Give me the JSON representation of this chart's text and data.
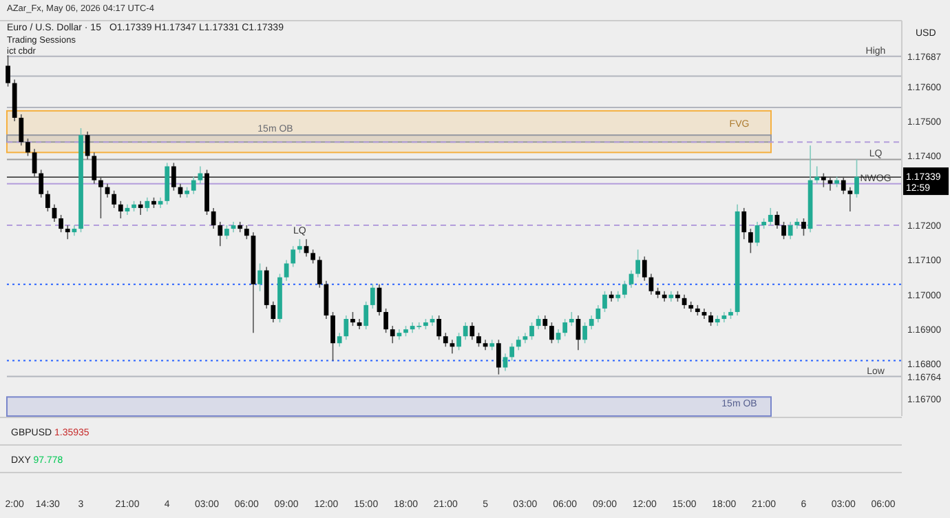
{
  "chart_data": {
    "type": "candlestick",
    "title": "Euro / U.S. Dollar · 15",
    "subtitle": "O1.17339  H1.17347  L1.17331  C1.17339",
    "annotations": [
      "AZar_Fx, May 06, 2026 04:17 UTC-4",
      "Trading Sessions",
      "ict cbdr",
      "USD",
      "GBPUSD 1.35935",
      "DXY 97.778",
      "12:59",
      "LQ"
    ],
    "categories": [
      null,
      "2:00",
      null,
      null,
      null,
      null,
      "14:30",
      null,
      null,
      null,
      null,
      "3",
      null,
      null,
      null,
      null,
      null,
      null,
      "21:00",
      null,
      null,
      null,
      null,
      null,
      "4",
      null,
      null,
      null,
      null,
      null,
      "03:00",
      null,
      null,
      null,
      null,
      null,
      "06:00",
      null,
      null,
      null,
      null,
      null,
      "09:00",
      null,
      null,
      null,
      null,
      null,
      "12:00",
      null,
      null,
      null,
      null,
      null,
      "15:00",
      null,
      null,
      null,
      null,
      null,
      "18:00",
      null,
      null,
      null,
      null,
      null,
      "21:00",
      null,
      null,
      null,
      null,
      null,
      "5",
      null,
      null,
      null,
      null,
      null,
      "03:00",
      null,
      null,
      null,
      null,
      null,
      "06:00",
      null,
      null,
      null,
      null,
      null,
      "09:00",
      null,
      null,
      null,
      null,
      null,
      "12:00",
      null,
      null,
      null,
      null,
      null,
      "15:00",
      null,
      null,
      null,
      null,
      null,
      "18:00",
      null,
      null,
      null,
      null,
      null,
      "21:00",
      null,
      null,
      null,
      null,
      null,
      "6",
      null,
      null,
      null,
      null,
      null,
      "03:00",
      null,
      null,
      null,
      null,
      null,
      "06:00",
      null,
      null
    ],
    "ohlc": [
      [
        1.1766,
        1.1769,
        1.176,
        1.1761
      ],
      [
        1.1761,
        1.1762,
        1.175,
        1.1751
      ],
      [
        1.1751,
        1.1752,
        1.1743,
        1.1744
      ],
      [
        1.1744,
        1.1745,
        1.174,
        1.1741
      ],
      [
        1.1741,
        1.1742,
        1.1734,
        1.1735
      ],
      [
        1.1735,
        1.1736,
        1.1728,
        1.1729
      ],
      [
        1.1729,
        1.173,
        1.1724,
        1.1725
      ],
      [
        1.1725,
        1.1726,
        1.1721,
        1.1722
      ],
      [
        1.1722,
        1.1723,
        1.1718,
        1.1719
      ],
      [
        1.1719,
        1.172,
        1.1716,
        1.1718
      ],
      [
        1.1718,
        1.172,
        1.1717,
        1.1719
      ],
      [
        1.1719,
        1.1748,
        1.1718,
        1.1746
      ],
      [
        1.1746,
        1.1747,
        1.1739,
        1.174
      ],
      [
        1.174,
        1.1741,
        1.1732,
        1.1733
      ],
      [
        1.1733,
        1.1734,
        1.1722,
        1.1731
      ],
      [
        1.1731,
        1.1732,
        1.1728,
        1.1729
      ],
      [
        1.1729,
        1.173,
        1.1725,
        1.1726
      ],
      [
        1.1726,
        1.1727,
        1.1722,
        1.1724
      ],
      [
        1.1724,
        1.1726,
        1.1723,
        1.1725
      ],
      [
        1.1725,
        1.1727,
        1.1724,
        1.1726
      ],
      [
        1.1726,
        1.1727,
        1.1723,
        1.1725
      ],
      [
        1.1725,
        1.1728,
        1.1724,
        1.1727
      ],
      [
        1.1727,
        1.1728,
        1.1725,
        1.1726
      ],
      [
        1.1726,
        1.1728,
        1.1725,
        1.1727
      ],
      [
        1.1727,
        1.1738,
        1.1726,
        1.1737
      ],
      [
        1.1737,
        1.1738,
        1.173,
        1.1731
      ],
      [
        1.1731,
        1.1732,
        1.1728,
        1.1729
      ],
      [
        1.1729,
        1.1731,
        1.1728,
        1.173
      ],
      [
        1.173,
        1.1734,
        1.1729,
        1.1733
      ],
      [
        1.1733,
        1.1737,
        1.1732,
        1.1735
      ],
      [
        1.1735,
        1.1736,
        1.1723,
        1.1724
      ],
      [
        1.1724,
        1.1725,
        1.1719,
        1.172
      ],
      [
        1.172,
        1.1721,
        1.1714,
        1.1717
      ],
      [
        1.1717,
        1.172,
        1.1716,
        1.1719
      ],
      [
        1.1719,
        1.1721,
        1.1718,
        1.172
      ],
      [
        1.172,
        1.1721,
        1.1718,
        1.1719
      ],
      [
        1.1719,
        1.172,
        1.1716,
        1.1717
      ],
      [
        1.1717,
        1.1718,
        1.1689,
        1.1703
      ],
      [
        1.1703,
        1.1709,
        1.1701,
        1.1707
      ],
      [
        1.1707,
        1.1708,
        1.1696,
        1.1697
      ],
      [
        1.1697,
        1.1698,
        1.1692,
        1.1693
      ],
      [
        1.1693,
        1.1706,
        1.1692,
        1.1705
      ],
      [
        1.1705,
        1.171,
        1.1704,
        1.1709
      ],
      [
        1.1709,
        1.1714,
        1.1708,
        1.1713
      ],
      [
        1.1713,
        1.1716,
        1.1712,
        1.1714
      ],
      [
        1.1714,
        1.1716,
        1.1711,
        1.1712
      ],
      [
        1.1712,
        1.1713,
        1.1709,
        1.171
      ],
      [
        1.171,
        1.1711,
        1.1702,
        1.1703
      ],
      [
        1.1703,
        1.1704,
        1.1693,
        1.1694
      ],
      [
        1.1694,
        1.1695,
        1.1681,
        1.1686
      ],
      [
        1.1686,
        1.1689,
        1.1685,
        1.1688
      ],
      [
        1.1688,
        1.1694,
        1.1687,
        1.1693
      ],
      [
        1.1693,
        1.1695,
        1.1691,
        1.1692
      ],
      [
        1.1692,
        1.1693,
        1.169,
        1.1691
      ],
      [
        1.1691,
        1.1698,
        1.169,
        1.1697
      ],
      [
        1.1697,
        1.1703,
        1.1696,
        1.1702
      ],
      [
        1.1702,
        1.1703,
        1.1694,
        1.1695
      ],
      [
        1.1695,
        1.1696,
        1.1689,
        1.169
      ],
      [
        1.169,
        1.1691,
        1.1686,
        1.1688
      ],
      [
        1.1688,
        1.169,
        1.1687,
        1.1689
      ],
      [
        1.1689,
        1.1691,
        1.1688,
        1.169
      ],
      [
        1.169,
        1.1692,
        1.1689,
        1.1691
      ],
      [
        1.1691,
        1.1692,
        1.169,
        1.1691
      ],
      [
        1.1691,
        1.1693,
        1.169,
        1.1692
      ],
      [
        1.1692,
        1.1694,
        1.1691,
        1.1693
      ],
      [
        1.1693,
        1.1694,
        1.1687,
        1.1688
      ],
      [
        1.1688,
        1.1689,
        1.1685,
        1.1686
      ],
      [
        1.1686,
        1.1687,
        1.1683,
        1.1685
      ],
      [
        1.1685,
        1.1689,
        1.1684,
        1.1688
      ],
      [
        1.1688,
        1.1692,
        1.1687,
        1.1691
      ],
      [
        1.1691,
        1.1692,
        1.1687,
        1.1688
      ],
      [
        1.1688,
        1.1689,
        1.1685,
        1.1686
      ],
      [
        1.1686,
        1.1687,
        1.1684,
        1.1685
      ],
      [
        1.1685,
        1.1687,
        1.1684,
        1.1686
      ],
      [
        1.1686,
        1.1687,
        1.1677,
        1.1679
      ],
      [
        1.1679,
        1.1683,
        1.1678,
        1.1682
      ],
      [
        1.1682,
        1.1686,
        1.1681,
        1.1685
      ],
      [
        1.1685,
        1.1688,
        1.1684,
        1.1687
      ],
      [
        1.1687,
        1.1689,
        1.1686,
        1.1688
      ],
      [
        1.1688,
        1.1692,
        1.1687,
        1.1691
      ],
      [
        1.1691,
        1.1694,
        1.169,
        1.1693
      ],
      [
        1.1693,
        1.1694,
        1.169,
        1.1691
      ],
      [
        1.1691,
        1.1692,
        1.1686,
        1.1687
      ],
      [
        1.1687,
        1.169,
        1.1686,
        1.1689
      ],
      [
        1.1689,
        1.1693,
        1.1688,
        1.1692
      ],
      [
        1.1692,
        1.1695,
        1.1691,
        1.1693
      ],
      [
        1.1693,
        1.1694,
        1.1684,
        1.1687
      ],
      [
        1.1687,
        1.1692,
        1.1686,
        1.1691
      ],
      [
        1.1691,
        1.1694,
        1.169,
        1.1693
      ],
      [
        1.1693,
        1.1697,
        1.1692,
        1.1696
      ],
      [
        1.1696,
        1.1701,
        1.1695,
        1.17
      ],
      [
        1.17,
        1.1701,
        1.1698,
        1.1699
      ],
      [
        1.1699,
        1.1701,
        1.1698,
        1.17
      ],
      [
        1.17,
        1.1704,
        1.1699,
        1.1703
      ],
      [
        1.1703,
        1.1707,
        1.1702,
        1.1706
      ],
      [
        1.1706,
        1.1713,
        1.1705,
        1.171
      ],
      [
        1.171,
        1.1711,
        1.1704,
        1.1705
      ],
      [
        1.1705,
        1.1706,
        1.17,
        1.1701
      ],
      [
        1.1701,
        1.1702,
        1.1699,
        1.17
      ],
      [
        1.17,
        1.1701,
        1.1698,
        1.1699
      ],
      [
        1.1699,
        1.1701,
        1.1698,
        1.17
      ],
      [
        1.17,
        1.1701,
        1.1698,
        1.1699
      ],
      [
        1.1699,
        1.17,
        1.1696,
        1.1697
      ],
      [
        1.1697,
        1.1698,
        1.1695,
        1.1696
      ],
      [
        1.1696,
        1.1697,
        1.1694,
        1.1695
      ],
      [
        1.1695,
        1.1696,
        1.1693,
        1.1694
      ],
      [
        1.1694,
        1.1695,
        1.1691,
        1.1692
      ],
      [
        1.1692,
        1.1694,
        1.1691,
        1.1693
      ],
      [
        1.1693,
        1.1695,
        1.1692,
        1.1694
      ],
      [
        1.1694,
        1.1696,
        1.1693,
        1.1695
      ],
      [
        1.1695,
        1.1726,
        1.1694,
        1.1724
      ],
      [
        1.1724,
        1.1725,
        1.1716,
        1.1718
      ],
      [
        1.1718,
        1.1719,
        1.1712,
        1.1715
      ],
      [
        1.1715,
        1.1721,
        1.1714,
        1.172
      ],
      [
        1.172,
        1.1722,
        1.1719,
        1.1721
      ],
      [
        1.1721,
        1.1725,
        1.172,
        1.1723
      ],
      [
        1.1723,
        1.1724,
        1.1719,
        1.172
      ],
      [
        1.172,
        1.1721,
        1.1716,
        1.1717
      ],
      [
        1.1717,
        1.1721,
        1.1716,
        1.172
      ],
      [
        1.172,
        1.1722,
        1.1719,
        1.1721
      ],
      [
        1.1721,
        1.1722,
        1.1717,
        1.1719
      ],
      [
        1.1719,
        1.1743,
        1.1718,
        1.1733
      ],
      [
        1.1733,
        1.1737,
        1.1732,
        1.1734
      ],
      [
        1.1734,
        1.1735,
        1.1731,
        1.1733
      ],
      [
        1.1733,
        1.1734,
        1.173,
        1.1732
      ],
      [
        1.1732,
        1.1734,
        1.1731,
        1.1733
      ],
      [
        1.1733,
        1.1734,
        1.1729,
        1.173
      ],
      [
        1.173,
        1.1731,
        1.1724,
        1.1729
      ],
      [
        1.1729,
        1.1739,
        1.1728,
        1.1734
      ],
      null,
      null,
      null,
      null,
      null,
      null
    ],
    "ylim": [
      1.1665,
      1.1779
    ],
    "yticks": [
      {
        "value": 1.167,
        "label": "1.16700"
      },
      {
        "value": 1.168,
        "label": "1.16800"
      },
      {
        "value": 1.169,
        "label": "1.16900"
      },
      {
        "value": 1.17,
        "label": "1.17000"
      },
      {
        "value": 1.171,
        "label": "1.17100"
      },
      {
        "value": 1.172,
        "label": "1.17200"
      },
      {
        "value": 1.174,
        "label": "1.17400"
      },
      {
        "value": 1.175,
        "label": "1.17500"
      },
      {
        "value": 1.176,
        "label": "1.17600"
      },
      {
        "value": 1.16764,
        "label": "1.16764"
      },
      {
        "value": 1.17687,
        "label": "1.17687"
      }
    ],
    "bands": [
      {
        "axis": "y",
        "from": 1.1741,
        "to": 1.1753,
        "label": "FVG",
        "color": "#f5b041"
      },
      {
        "axis": "y",
        "from": 1.1744,
        "to": 1.1746,
        "label": "15m OB",
        "color": "#9598a1"
      },
      {
        "axis": "y",
        "from": 1.1665,
        "to": 1.16705,
        "label": "15m OB",
        "color": "#7986cb"
      }
    ],
    "ref_lines": [
      {
        "axis": "y",
        "value": 1.17687,
        "label": "High",
        "color": "#b2b5be"
      },
      {
        "axis": "y",
        "value": 1.16764,
        "label": "Low",
        "color": "#b2b5be"
      },
      {
        "axis": "y",
        "value": 1.1739,
        "label": "LQ",
        "color": "#9e9e9e"
      },
      {
        "axis": "y",
        "value": 1.1732,
        "label": "NWOG",
        "color": "#b39ddb"
      },
      {
        "axis": "y",
        "value": 1.1763,
        "color": "#b2b5be"
      },
      {
        "axis": "y",
        "value": 1.1754,
        "color": "#b2b5be"
      },
      {
        "axis": "y",
        "value": 1.1744,
        "color": "#b39ddb",
        "line_style": "dashed"
      },
      {
        "axis": "y",
        "value": 1.172,
        "color": "#b39ddb",
        "line_style": "dashed"
      },
      {
        "axis": "y",
        "value": 1.1703,
        "color": "#2962ff",
        "line_style": "dotted"
      },
      {
        "axis": "y",
        "value": 1.1681,
        "color": "#2962ff",
        "line_style": "dotted"
      },
      {
        "axis": "y",
        "value": 1.17339,
        "label": "1.17339",
        "color": "#000000"
      }
    ],
    "grid": false
  }
}
